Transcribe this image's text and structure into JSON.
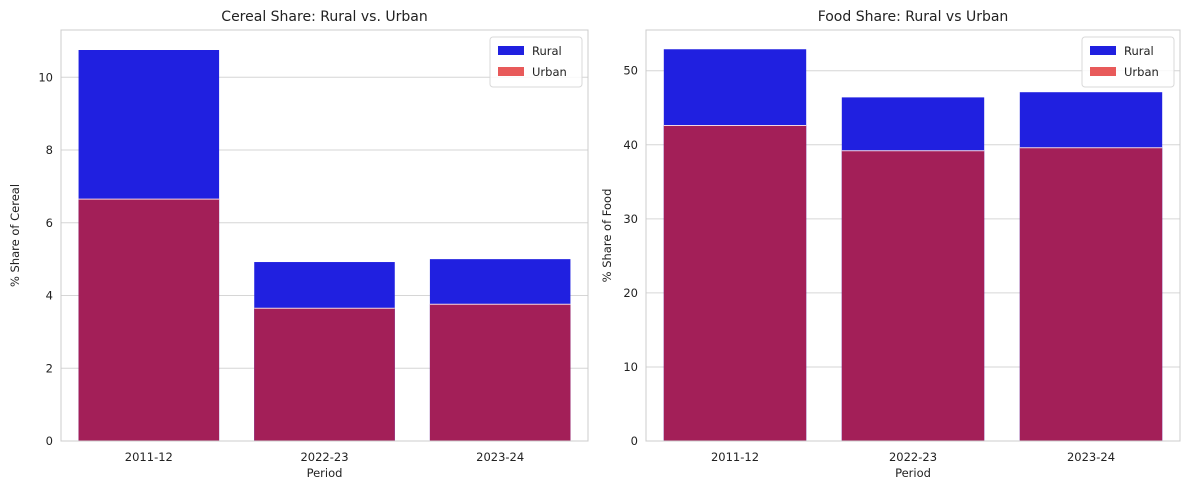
{
  "colors": {
    "rural": "#2020e0",
    "urban_overlay": "#a31f58",
    "urban_legend": "#e85a5a",
    "grid": "#d6d6d6",
    "frame": "#cccccc"
  },
  "chart_data": [
    {
      "type": "bar",
      "title": "Cereal Share: Rural vs. Urban",
      "xlabel": "Period",
      "ylabel": "% Share of Cereal",
      "categories": [
        "2011-12",
        "2022-23",
        "2023-24"
      ],
      "series": [
        {
          "name": "Rural",
          "values": [
            10.75,
            4.92,
            5.0
          ]
        },
        {
          "name": "Urban",
          "values": [
            6.65,
            3.65,
            3.76
          ]
        }
      ],
      "ylim": [
        0,
        11.3
      ],
      "yticks": [
        0,
        2,
        4,
        6,
        8,
        10
      ],
      "grid": true,
      "legend": "top-right"
    },
    {
      "type": "bar",
      "title": "Food Share: Rural vs Urban",
      "xlabel": "Period",
      "ylabel": "% Share of Food",
      "categories": [
        "2011-12",
        "2022-23",
        "2023-24"
      ],
      "series": [
        {
          "name": "Rural",
          "values": [
            52.9,
            46.4,
            47.1
          ]
        },
        {
          "name": "Urban",
          "values": [
            42.6,
            39.2,
            39.6
          ]
        }
      ],
      "ylim": [
        0,
        55.5
      ],
      "yticks": [
        0,
        10,
        20,
        30,
        40,
        50
      ],
      "grid": true,
      "legend": "top-right"
    }
  ]
}
